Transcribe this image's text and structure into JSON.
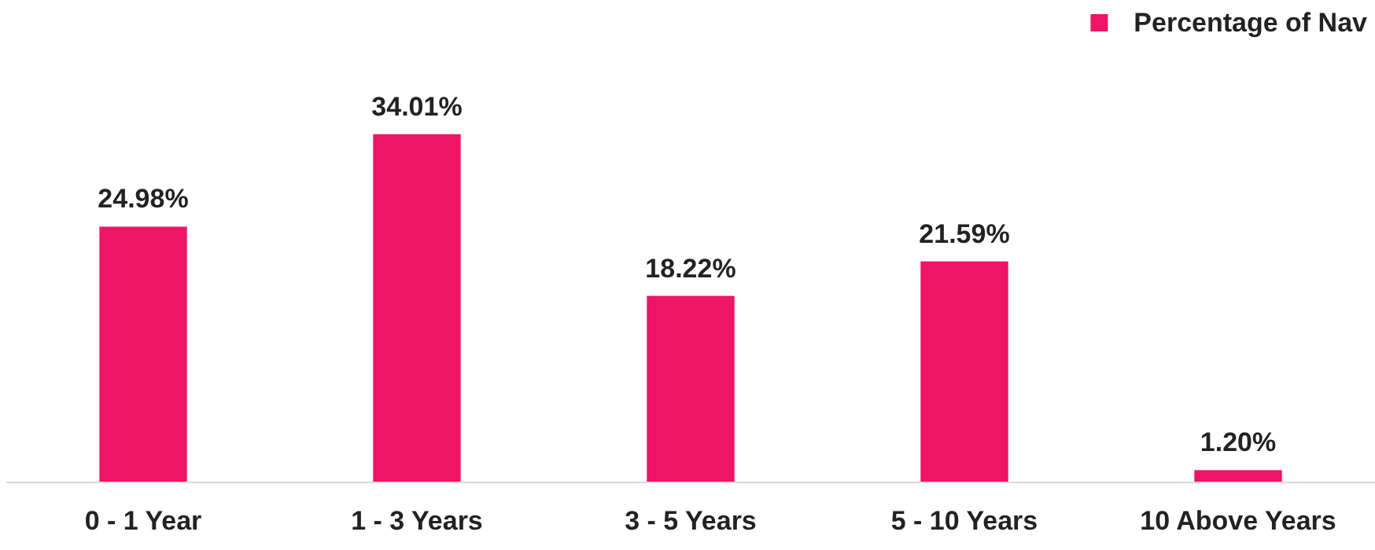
{
  "chart_data": {
    "type": "bar",
    "categories": [
      "0 - 1 Year",
      "1 - 3 Years",
      "3 - 5 Years",
      "5 - 10 Years",
      "10 Above Years"
    ],
    "series": [
      {
        "name": "Percentage of Nav",
        "color": "#ed1566",
        "values": [
          24.98,
          34.01,
          18.22,
          21.59,
          1.2
        ],
        "value_labels": [
          "24.98%",
          "34.01%",
          "18.22%",
          "21.59%",
          "1.20%"
        ]
      }
    ],
    "legend": "top right"
  }
}
